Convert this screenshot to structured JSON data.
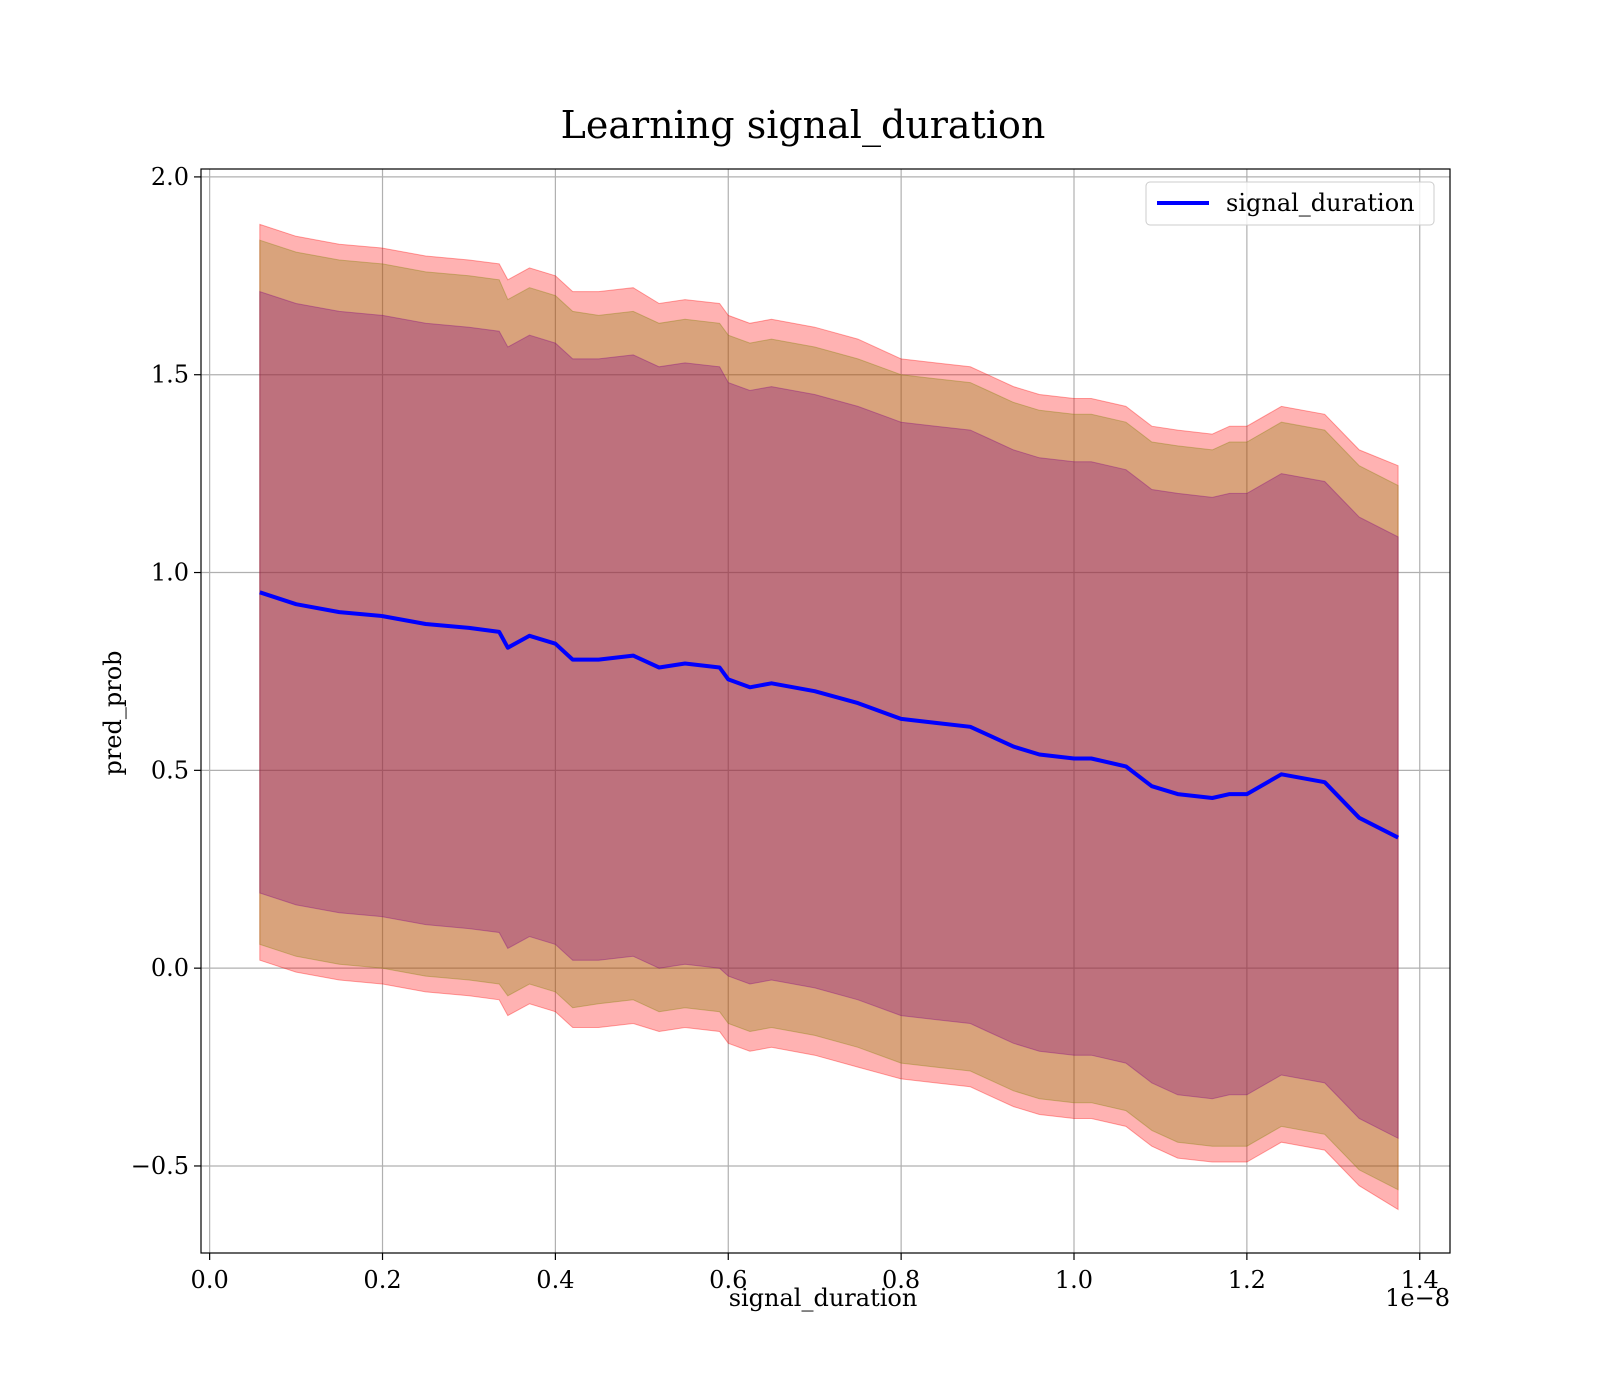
{
  "chart_data": {
    "type": "line",
    "title": "Learning signal_duration",
    "xlabel": "signal_duration",
    "ylabel": "pred_prob",
    "x_offset_label": "1e−8",
    "xlim": [
      -0.01,
      1.435
    ],
    "ylim": [
      -0.72,
      2.02
    ],
    "grid": true,
    "legend_position": "top-right",
    "x_ticks": [
      0.0,
      0.2,
      0.4,
      0.6,
      0.8,
      1.0,
      1.2,
      1.4
    ],
    "x_tick_labels": [
      "0.0",
      "0.2",
      "0.4",
      "0.6",
      "0.8",
      "1.0",
      "1.2",
      "1.4"
    ],
    "y_ticks": [
      -0.5,
      0.0,
      0.5,
      1.0,
      1.5,
      2.0
    ],
    "y_tick_labels": [
      "−0.5",
      "0.0",
      "0.5",
      "1.0",
      "1.5",
      "2.0"
    ],
    "colors": {
      "line": "#0000ff",
      "band_outer": "#ff0000",
      "band_mid": "#808000",
      "band_inner": "#800080",
      "grid": "#b0b0b0"
    },
    "series": [
      {
        "name": "signal_duration",
        "x": [
          0.058,
          0.1,
          0.15,
          0.2,
          0.25,
          0.3,
          0.335,
          0.345,
          0.37,
          0.4,
          0.42,
          0.45,
          0.49,
          0.52,
          0.55,
          0.59,
          0.6,
          0.625,
          0.65,
          0.7,
          0.75,
          0.8,
          0.84,
          0.88,
          0.9,
          0.93,
          0.96,
          1.0,
          1.02,
          1.06,
          1.09,
          1.12,
          1.16,
          1.18,
          1.2,
          1.24,
          1.29,
          1.33,
          1.375
        ],
        "mean": [
          0.95,
          0.92,
          0.9,
          0.89,
          0.87,
          0.86,
          0.85,
          0.81,
          0.84,
          0.82,
          0.78,
          0.78,
          0.79,
          0.76,
          0.77,
          0.76,
          0.73,
          0.71,
          0.72,
          0.7,
          0.67,
          0.63,
          0.62,
          0.61,
          0.59,
          0.56,
          0.54,
          0.53,
          0.53,
          0.51,
          0.46,
          0.44,
          0.43,
          0.44,
          0.44,
          0.49,
          0.47,
          0.38,
          0.33
        ]
      }
    ],
    "bands": [
      {
        "name": "outer",
        "half_width": [
          0.93,
          0.93,
          0.93,
          0.93,
          0.93,
          0.93,
          0.93,
          0.93,
          0.93,
          0.93,
          0.93,
          0.93,
          0.93,
          0.92,
          0.92,
          0.92,
          0.92,
          0.92,
          0.92,
          0.92,
          0.92,
          0.91,
          0.91,
          0.91,
          0.91,
          0.91,
          0.91,
          0.91,
          0.91,
          0.91,
          0.91,
          0.92,
          0.92,
          0.93,
          0.93,
          0.93,
          0.93,
          0.93,
          0.94
        ]
      },
      {
        "name": "mid",
        "half_width": [
          0.89,
          0.89,
          0.89,
          0.89,
          0.89,
          0.89,
          0.89,
          0.88,
          0.88,
          0.88,
          0.88,
          0.87,
          0.87,
          0.87,
          0.87,
          0.87,
          0.87,
          0.87,
          0.87,
          0.87,
          0.87,
          0.87,
          0.87,
          0.87,
          0.87,
          0.87,
          0.87,
          0.87,
          0.87,
          0.87,
          0.87,
          0.88,
          0.88,
          0.89,
          0.89,
          0.89,
          0.89,
          0.89,
          0.89
        ]
      },
      {
        "name": "inner",
        "half_width": [
          0.76,
          0.76,
          0.76,
          0.76,
          0.76,
          0.76,
          0.76,
          0.76,
          0.76,
          0.76,
          0.76,
          0.76,
          0.76,
          0.76,
          0.76,
          0.76,
          0.75,
          0.75,
          0.75,
          0.75,
          0.75,
          0.75,
          0.75,
          0.75,
          0.75,
          0.75,
          0.75,
          0.75,
          0.75,
          0.75,
          0.75,
          0.76,
          0.76,
          0.76,
          0.76,
          0.76,
          0.76,
          0.76,
          0.76
        ]
      }
    ]
  }
}
